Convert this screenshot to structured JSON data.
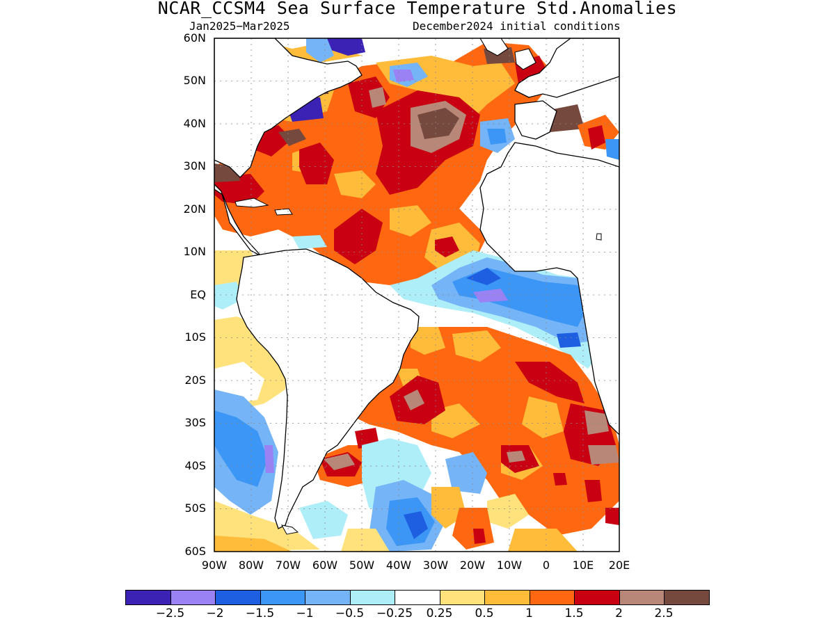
{
  "title": "NCAR_CCSM4 Sea Surface Temperature Std.Anomalies",
  "subtitle_left": "Jan2025−Mar2025",
  "subtitle_right": "December2024 initial conditions",
  "lat_labels": [
    "60N",
    "50N",
    "40N",
    "30N",
    "20N",
    "10N",
    "EQ",
    "10S",
    "20S",
    "30S",
    "40S",
    "50S",
    "60S"
  ],
  "lon_labels": [
    "90W",
    "80W",
    "70W",
    "60W",
    "50W",
    "40W",
    "30W",
    "20W",
    "10W",
    "0",
    "10E",
    "20E"
  ],
  "colorbar": {
    "colors": [
      "#3b22b4",
      "#9a82f5",
      "#1e5fe2",
      "#3c96f5",
      "#74b4f7",
      "#aeeef9",
      "#ffffff",
      "#ffe27c",
      "#ffbb3a",
      "#ff6810",
      "#c80012",
      "#b88778",
      "#76493e"
    ],
    "labels": [
      "−2.5",
      "−2",
      "−1.5",
      "−1",
      "−0.5",
      "−0.25",
      "0.25",
      "0.5",
      "1",
      "1.5",
      "2",
      "2.5"
    ]
  }
}
